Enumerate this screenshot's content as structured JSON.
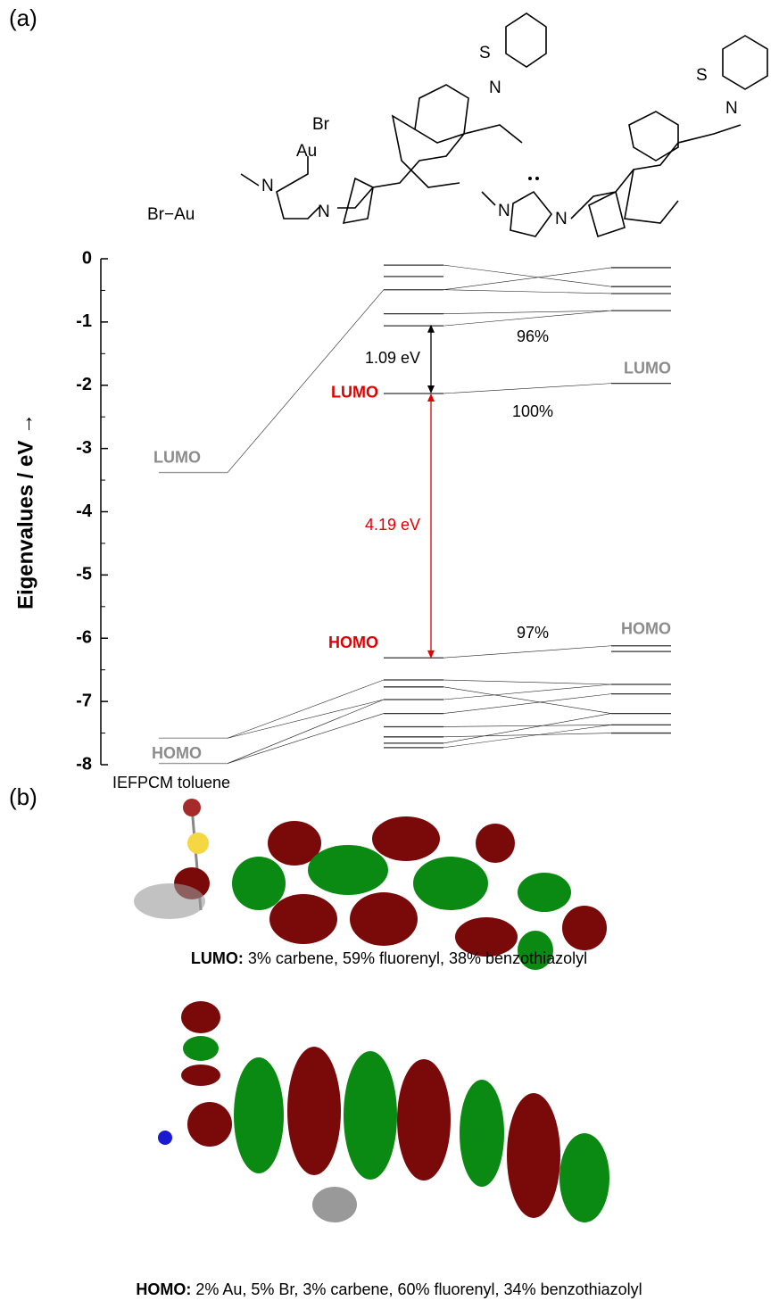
{
  "panel_labels": [
    "(a)",
    "(b)"
  ],
  "structures": {
    "fragment": "Br−Au",
    "complex_atoms": [
      "Br",
      "Au",
      "N",
      "N",
      "S",
      "N"
    ],
    "ligand_atoms": [
      "S",
      "N",
      "N",
      "N"
    ]
  },
  "chart_data": {
    "type": "levels",
    "ylabel": "Eigenvalues / eV →",
    "ylim": [
      -8,
      0
    ],
    "yticks": [
      0,
      -1,
      -2,
      -3,
      -4,
      -5,
      -6,
      -7,
      -8
    ],
    "note": "IEFPCM toluene",
    "columns": [
      {
        "values": [
          -3.38,
          -7.58,
          -7.98
        ],
        "color": "#999999",
        "lumo_index": 0,
        "homo_index": 1,
        "lumo_label": "LUMO",
        "homo_label": "HOMO",
        "label_color": "#8c8c8c"
      },
      {
        "values": [
          -0.1,
          -0.28,
          -0.49,
          -0.87,
          -1.06,
          -2.13,
          -6.31,
          -6.66,
          -6.77,
          -6.97,
          -7.19,
          -7.4,
          -7.56,
          -7.66,
          -7.73
        ],
        "color": "#333333",
        "lumo_index": 5,
        "homo_index": 6,
        "lumo_label": "LUMO",
        "homo_label": "HOMO",
        "label_color": "#e00000"
      },
      {
        "values": [
          -0.14,
          -0.44,
          -0.55,
          -0.82,
          -1.97,
          -6.12,
          -6.21,
          -6.73,
          -6.88,
          -7.19,
          -7.37,
          -7.5
        ],
        "color": "#333333",
        "lumo_index": 4,
        "homo_index": 5,
        "lumo_label": "LUMO",
        "homo_label": "HOMO",
        "label_color": "#8c8c8c"
      }
    ],
    "links": [
      [
        0,
        0,
        1,
        2
      ],
      [
        0,
        1,
        1,
        7
      ],
      [
        0,
        1,
        1,
        9
      ],
      [
        0,
        2,
        1,
        10
      ],
      [
        0,
        2,
        1,
        9
      ],
      [
        1,
        0,
        2,
        1
      ],
      [
        1,
        2,
        2,
        0
      ],
      [
        1,
        2,
        2,
        2
      ],
      [
        1,
        3,
        2,
        3
      ],
      [
        1,
        4,
        2,
        3
      ],
      [
        1,
        5,
        2,
        4
      ],
      [
        1,
        6,
        2,
        5
      ],
      [
        1,
        7,
        2,
        7
      ],
      [
        1,
        8,
        2,
        9
      ],
      [
        1,
        9,
        2,
        7
      ],
      [
        1,
        10,
        2,
        8
      ],
      [
        1,
        11,
        2,
        10
      ],
      [
        1,
        12,
        2,
        11
      ],
      [
        1,
        13,
        2,
        9
      ],
      [
        1,
        14,
        2,
        10
      ]
    ],
    "gaps": [
      {
        "label": "1.09 eV",
        "value": 1.09,
        "color": "#000000"
      },
      {
        "label": "4.19 eV",
        "value": 4.19,
        "color": "#e00000"
      }
    ],
    "percent_labels": [
      "96%",
      "100%",
      "97%"
    ]
  },
  "captions": [
    {
      "bold": "LUMO:",
      "text": " 3% carbene, 59% fluorenyl, 38% benzothiazolyl"
    },
    {
      "bold": "HOMO:",
      "text": " 2% Au, 5% Br, 3% carbene, 60% fluorenyl, 34% benzothiazolyl"
    }
  ]
}
